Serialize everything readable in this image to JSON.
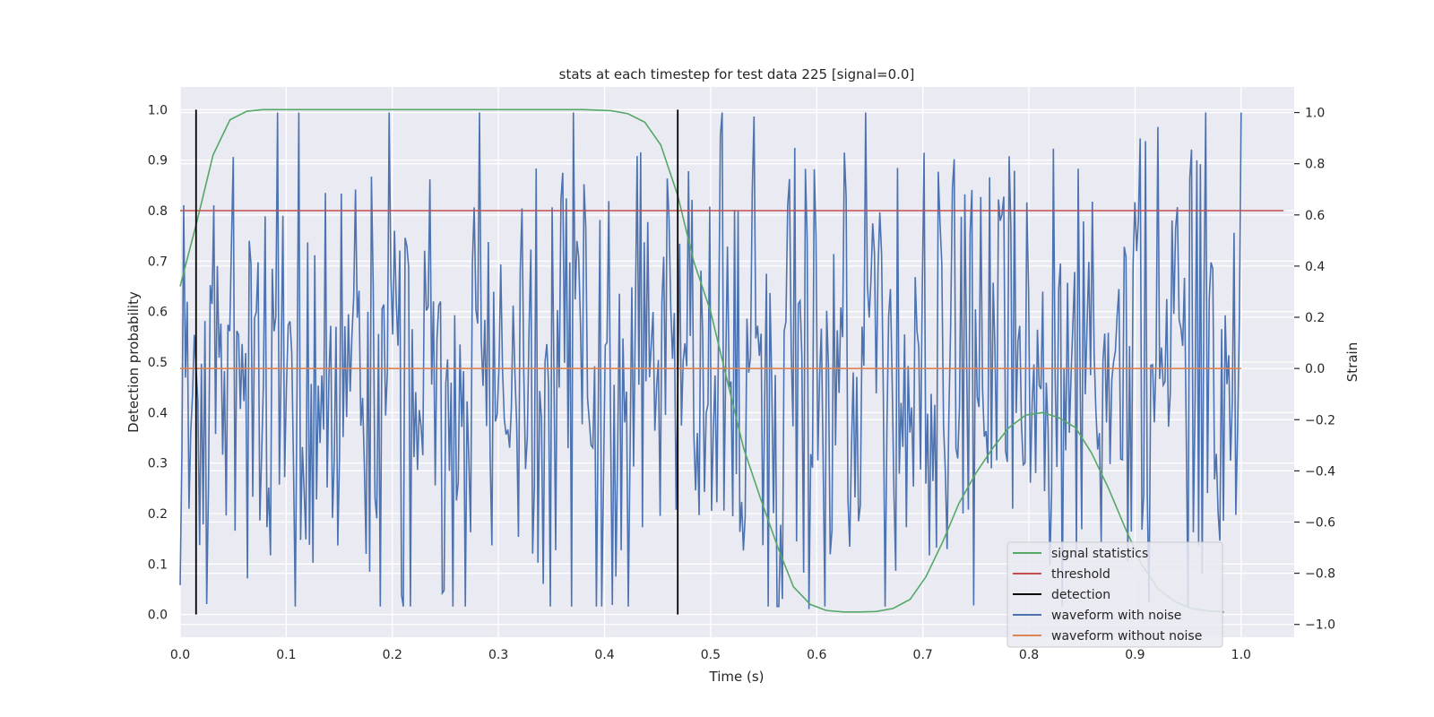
{
  "chart_data": {
    "type": "line",
    "title": "stats at each timestep for test data 225 [signal=0.0]",
    "xlabel": "Time (s)",
    "ylabel_left": "Detection probability",
    "ylabel_right": "Strain",
    "xlim": [
      0.0,
      1.05
    ],
    "ylim_left": [
      -0.045,
      1.045
    ],
    "ylim_right": [
      -1.05,
      1.1
    ],
    "x_ticks": [
      0.0,
      0.1,
      0.2,
      0.3,
      0.4,
      0.5,
      0.6,
      0.7,
      0.8,
      0.9,
      1.0
    ],
    "x_tick_labels": [
      "0.0",
      "0.1",
      "0.2",
      "0.3",
      "0.4",
      "0.5",
      "0.6",
      "0.7",
      "0.8",
      "0.9",
      "1.0"
    ],
    "y_left_ticks": [
      0.0,
      0.1,
      0.2,
      0.3,
      0.4,
      0.5,
      0.6,
      0.7,
      0.8,
      0.9,
      1.0
    ],
    "y_left_tick_labels": [
      "0.0",
      "0.1",
      "0.2",
      "0.3",
      "0.4",
      "0.5",
      "0.6",
      "0.7",
      "0.8",
      "0.9",
      "1.0"
    ],
    "y_right_ticks": [
      -1.0,
      -0.8,
      -0.6,
      -0.4,
      -0.2,
      0.0,
      0.2,
      0.4,
      0.6,
      0.8,
      1.0
    ],
    "y_right_tick_labels": [
      "−1.0",
      "−0.8",
      "−0.6",
      "−0.4",
      "−0.2",
      "0.0",
      "0.2",
      "0.4",
      "0.6",
      "0.8",
      "1.0"
    ],
    "grid": true,
    "legend_position": "lower-right",
    "legend": [
      {
        "label": "signal statistics",
        "color": "#55a868"
      },
      {
        "label": "threshold",
        "color": "#c44e52"
      },
      {
        "label": "detection",
        "color": "#000000"
      },
      {
        "label": "waveform with noise",
        "color": "#4c72b0"
      },
      {
        "label": "waveform without noise",
        "color": "#dd8452"
      }
    ],
    "series": [
      {
        "name": "signal statistics",
        "axis": "left",
        "color": "#55a868",
        "x": [
          0.0,
          0.016,
          0.031,
          0.047,
          0.063,
          0.078,
          0.094,
          0.109,
          0.125,
          0.2,
          0.3,
          0.38,
          0.406,
          0.422,
          0.438,
          0.453,
          0.469,
          0.484,
          0.5,
          0.516,
          0.531,
          0.547,
          0.563,
          0.578,
          0.594,
          0.609,
          0.625,
          0.641,
          0.656,
          0.672,
          0.688,
          0.703,
          0.719,
          0.734,
          0.75,
          0.766,
          0.781,
          0.797,
          0.813,
          0.828,
          0.844,
          0.859,
          0.875,
          0.891,
          0.906,
          0.922,
          0.938,
          0.953,
          0.969,
          0.984
        ],
        "y": [
          0.65,
          0.78,
          0.91,
          0.98,
          0.997,
          1.0,
          1.0,
          1.0,
          1.0,
          1.0,
          1.0,
          1.0,
          0.998,
          0.992,
          0.975,
          0.93,
          0.83,
          0.7,
          0.6,
          0.46,
          0.33,
          0.23,
          0.135,
          0.055,
          0.02,
          0.008,
          0.005,
          0.005,
          0.006,
          0.012,
          0.03,
          0.075,
          0.145,
          0.22,
          0.28,
          0.33,
          0.37,
          0.395,
          0.4,
          0.39,
          0.37,
          0.32,
          0.25,
          0.17,
          0.1,
          0.05,
          0.025,
          0.012,
          0.007,
          0.005
        ]
      },
      {
        "name": "threshold",
        "axis": "left",
        "color": "#c44e52",
        "x": [
          0.0,
          1.04
        ],
        "y": [
          0.8,
          0.8
        ]
      },
      {
        "name": "waveform without noise",
        "axis": "right",
        "color": "#dd8452",
        "x": [
          0.0,
          1.0
        ],
        "y": [
          0.0,
          0.0
        ]
      }
    ],
    "detections": {
      "name": "detection",
      "color": "#000000",
      "x": [
        0.015,
        0.469
      ],
      "y_range": [
        0.0,
        1.0
      ]
    },
    "noisy_waveform": {
      "name": "waveform with noise",
      "color": "#4c72b0",
      "axis": "right",
      "num_samples": 600,
      "y_range": [
        -0.93,
        1.0
      ],
      "peaks": [
        {
          "x": 0.002,
          "y": -0.33
        },
        {
          "x": 0.112,
          "y": 1.0
        },
        {
          "x": 0.113,
          "y": -0.67
        },
        {
          "x": 0.063,
          "y": 0.59
        },
        {
          "x": 0.064,
          "y": -0.82
        },
        {
          "x": 0.082,
          "y": -0.62
        },
        {
          "x": 0.085,
          "y": -0.73
        },
        {
          "x": 0.018,
          "y": -0.69
        },
        {
          "x": 0.35,
          "y": 0.63
        },
        {
          "x": 0.354,
          "y": -0.71
        },
        {
          "x": 0.38,
          "y": 0.72
        },
        {
          "x": 0.396,
          "y": 0.58
        },
        {
          "x": 0.415,
          "y": -0.71
        },
        {
          "x": 0.435,
          "y": -0.62
        },
        {
          "x": 0.43,
          "y": 0.83
        },
        {
          "x": 0.51,
          "y": 0.91
        },
        {
          "x": 0.522,
          "y": 0.62
        },
        {
          "x": 0.575,
          "y": 0.74
        },
        {
          "x": 0.59,
          "y": 0.78
        },
        {
          "x": 0.593,
          "y": -0.94
        },
        {
          "x": 0.66,
          "y": 0.61
        },
        {
          "x": 0.685,
          "y": -0.62
        },
        {
          "x": 0.74,
          "y": 0.68
        },
        {
          "x": 0.755,
          "y": 0.67
        },
        {
          "x": 0.82,
          "y": -0.77
        },
        {
          "x": 0.845,
          "y": -0.72
        },
        {
          "x": 0.9,
          "y": 0.65
        },
        {
          "x": 0.906,
          "y": -0.63
        },
        {
          "x": 0.955,
          "y": -0.64
        },
        {
          "x": 0.993,
          "y": 0.53
        },
        {
          "x": 0.99,
          "y": -0.36
        }
      ]
    }
  }
}
